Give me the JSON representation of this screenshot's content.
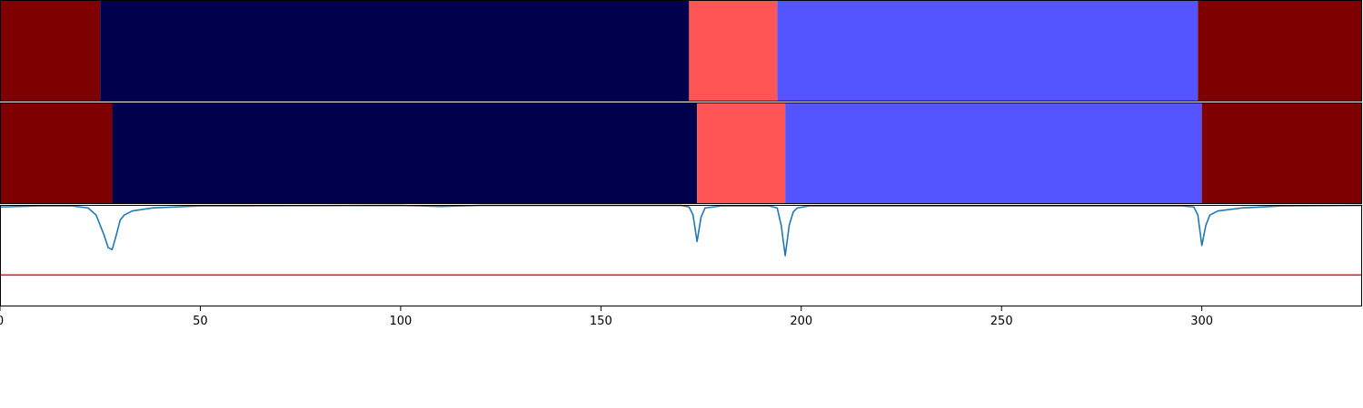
{
  "chart_data": [
    {
      "type": "heatmap",
      "title": "",
      "xlim": [
        0,
        340
      ],
      "segments": [
        {
          "start": 0,
          "end": 25,
          "color": "#7f0000"
        },
        {
          "start": 25,
          "end": 172,
          "color": "#00004c"
        },
        {
          "start": 172,
          "end": 194,
          "color": "#ff5555"
        },
        {
          "start": 194,
          "end": 299,
          "color": "#5555ff"
        },
        {
          "start": 299,
          "end": 340,
          "color": "#7f0000"
        }
      ]
    },
    {
      "type": "heatmap",
      "title": "",
      "xlim": [
        0,
        340
      ],
      "segments": [
        {
          "start": 0,
          "end": 28,
          "color": "#7f0000"
        },
        {
          "start": 28,
          "end": 174,
          "color": "#00004c"
        },
        {
          "start": 174,
          "end": 196,
          "color": "#ff5555"
        },
        {
          "start": 196,
          "end": 300,
          "color": "#5555ff"
        },
        {
          "start": 300,
          "end": 340,
          "color": "#7f0000"
        }
      ]
    },
    {
      "type": "line",
      "title": "",
      "xlabel": "",
      "ylabel": "",
      "xlim": [
        0,
        340
      ],
      "ylim": [
        -1,
        0
      ],
      "x_ticks": [
        0,
        50,
        100,
        150,
        200,
        250,
        300
      ],
      "series": [
        {
          "color": "#1f77b4",
          "points": [
            [
              0,
              -0.02
            ],
            [
              10,
              -0.01
            ],
            [
              18,
              -0.01
            ],
            [
              22,
              -0.03
            ],
            [
              24,
              -0.1
            ],
            [
              26,
              -0.3
            ],
            [
              27,
              -0.42
            ],
            [
              28,
              -0.44
            ],
            [
              29,
              -0.3
            ],
            [
              30,
              -0.15
            ],
            [
              31,
              -0.1
            ],
            [
              33,
              -0.06
            ],
            [
              38,
              -0.03
            ],
            [
              50,
              -0.01
            ],
            [
              100,
              -0.005
            ],
            [
              105,
              -0.01
            ],
            [
              110,
              -0.015
            ],
            [
              115,
              -0.01
            ],
            [
              120,
              -0.005
            ],
            [
              170,
              -0.005
            ],
            [
              172,
              -0.02
            ],
            [
              173,
              -0.1
            ],
            [
              174,
              -0.36
            ],
            [
              175,
              -0.12
            ],
            [
              176,
              -0.03
            ],
            [
              180,
              -0.01
            ],
            [
              192,
              -0.01
            ],
            [
              194,
              -0.03
            ],
            [
              195,
              -0.2
            ],
            [
              196,
              -0.5
            ],
            [
              197,
              -0.2
            ],
            [
              198,
              -0.07
            ],
            [
              199,
              -0.03
            ],
            [
              202,
              -0.01
            ],
            [
              295,
              -0.01
            ],
            [
              298,
              -0.02
            ],
            [
              299,
              -0.1
            ],
            [
              300,
              -0.4
            ],
            [
              301,
              -0.2
            ],
            [
              302,
              -0.1
            ],
            [
              304,
              -0.06
            ],
            [
              310,
              -0.03
            ],
            [
              320,
              -0.01
            ],
            [
              340,
              -0.005
            ]
          ]
        },
        {
          "color": "#d62728",
          "points": [
            [
              0,
              -0.69
            ],
            [
              340,
              -0.69
            ]
          ]
        }
      ]
    }
  ]
}
